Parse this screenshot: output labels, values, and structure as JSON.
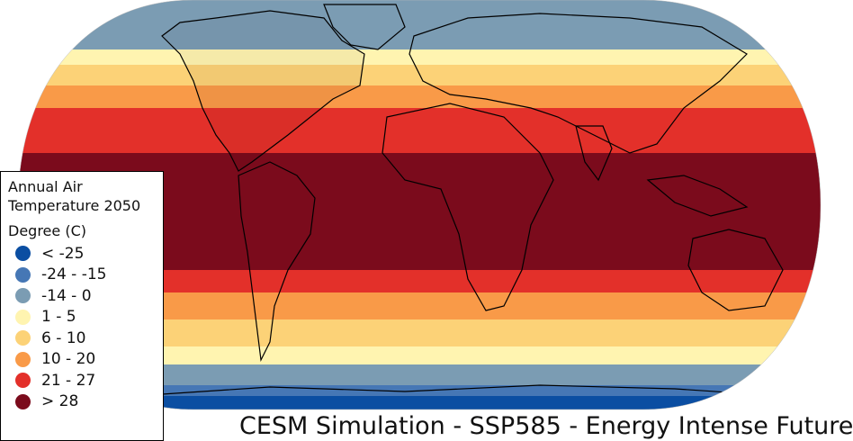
{
  "legend": {
    "title": "Annual Air Temperature 2050",
    "unit": "Degree (C)",
    "items": [
      {
        "label": "< -25",
        "color": "#0b4ea2"
      },
      {
        "label": "-24 - -15",
        "color": "#4677b5"
      },
      {
        "label": "-14 - 0",
        "color": "#7b9cb3"
      },
      {
        "label": "1 - 5",
        "color": "#fff4b0"
      },
      {
        "label": "6 - 10",
        "color": "#fcd277"
      },
      {
        "label": "10 - 20",
        "color": "#f99a48"
      },
      {
        "label": "21 - 27",
        "color": "#e3302a"
      },
      {
        "label": "> 28",
        "color": "#7b0b1c"
      }
    ]
  },
  "caption": "CESM Simulation - SSP585 - Energy Intense Future"
}
